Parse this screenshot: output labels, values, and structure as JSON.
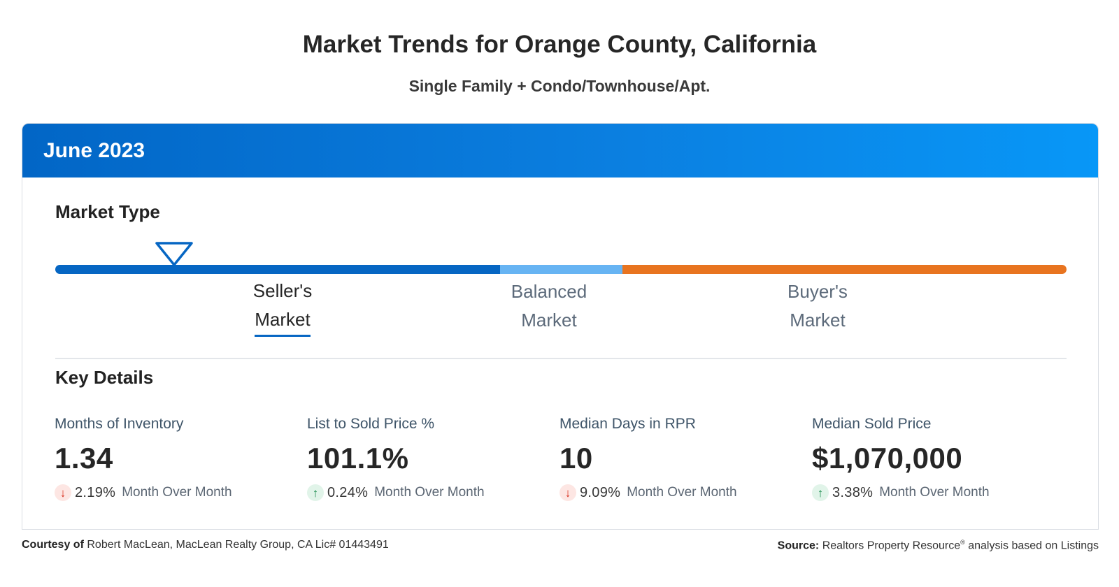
{
  "header": {
    "title": "Market Trends for Orange County, California",
    "subtitle": "Single Family + Condo/Townhouse/Apt."
  },
  "card": {
    "period": "June 2023",
    "market_type": {
      "title": "Market Type",
      "labels": [
        {
          "line1": "Seller's",
          "line2": "Market"
        },
        {
          "line1": "Balanced",
          "line2": "Market"
        },
        {
          "line1": "Buyer's",
          "line2": "Market"
        }
      ],
      "selected": "Seller's Market",
      "colors": {
        "seller": "#0666c3",
        "balanced": "#67b4f3",
        "buyer": "#e87420"
      }
    },
    "key_details": {
      "title": "Key Details",
      "metrics": [
        {
          "label": "Months of Inventory",
          "value": "1.34",
          "direction": "down",
          "change": "2.19%",
          "change_label": "Month Over Month"
        },
        {
          "label": "List to Sold Price %",
          "value": "101.1%",
          "direction": "up",
          "change": "0.24%",
          "change_label": "Month Over Month"
        },
        {
          "label": "Median Days in RPR",
          "value": "10",
          "direction": "down",
          "change": "9.09%",
          "change_label": "Month Over Month"
        },
        {
          "label": "Median Sold Price",
          "value": "$1,070,000",
          "direction": "up",
          "change": "3.38%",
          "change_label": "Month Over Month"
        }
      ]
    }
  },
  "footer": {
    "courtesy_label": "Courtesy of",
    "courtesy_text": "Robert MacLean, MacLean Realty Group, CA Lic# 01443491",
    "source_label": "Source:",
    "source_name": "Realtors Property Resource",
    "source_mark": "®",
    "source_text": "analysis based on Listings"
  }
}
